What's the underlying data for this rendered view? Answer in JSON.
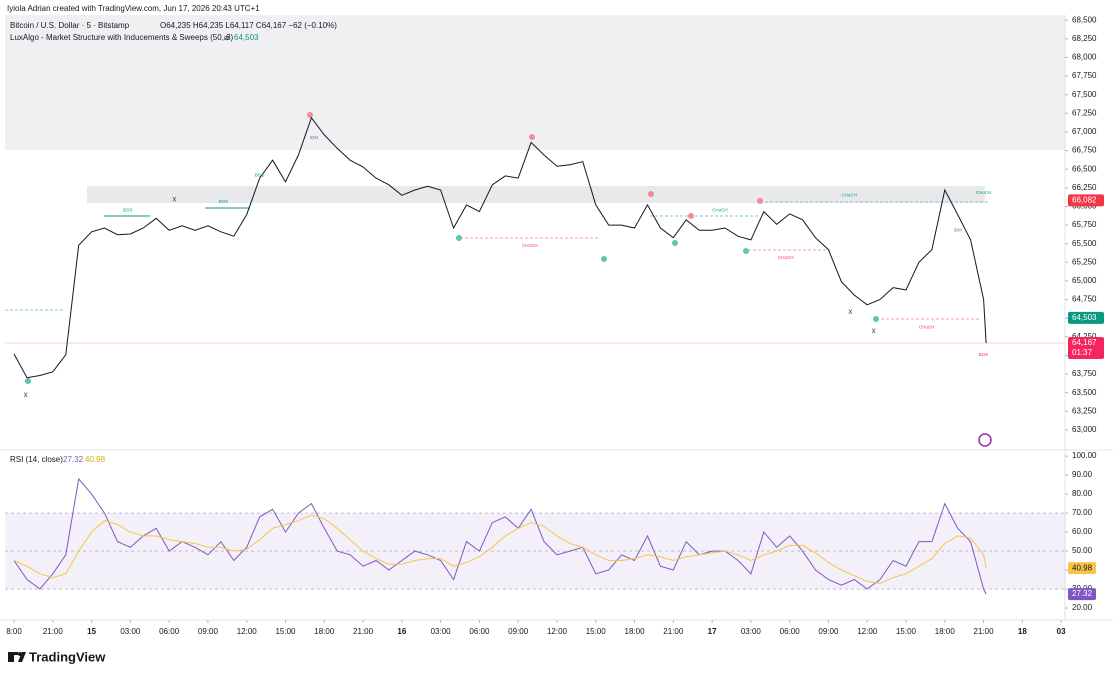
{
  "header": {
    "credit": "Iyiola Adrian created with TradingView.com, Jun 17, 2026 20:43 UTC+1",
    "logo": "TradingView"
  },
  "chart_data": [
    {
      "type": "line",
      "symbol": "Bitcoin / U.S. Dollar · 5 · Bitstamp",
      "ohlc": "O64,235 H64,235 L64,117 C64,167 −62 (−0.10%)",
      "indicator": "LuxAlgo - Market Structure with Inducements & Sweeps (50, 3)",
      "indicator_symbol": "⌀",
      "xlim": [
        -0.7,
        81.3
      ],
      "ylim": [
        62730,
        68570
      ],
      "yticks": [
        {
          "value": 68500,
          "label": "68,500"
        },
        {
          "value": 68250,
          "label": "68,250"
        },
        {
          "value": 68000,
          "label": "68,000"
        },
        {
          "value": 67750,
          "label": "67,750"
        },
        {
          "value": 67500,
          "label": "67,500"
        },
        {
          "value": 67250,
          "label": "67,250"
        },
        {
          "value": 67000,
          "label": "67,000"
        },
        {
          "value": 66750,
          "label": "66,750"
        },
        {
          "value": 66500,
          "label": "66,500"
        },
        {
          "value": 66250,
          "label": "66,250"
        },
        {
          "value": 66000,
          "label": "66,000"
        },
        {
          "value": 65750,
          "label": "65,750"
        },
        {
          "value": 65500,
          "label": "65,500"
        },
        {
          "value": 65250,
          "label": "65,250"
        },
        {
          "value": 65000,
          "label": "65,000"
        },
        {
          "value": 64750,
          "label": "64,750"
        },
        {
          "value": 64500,
          "label": "64,500"
        },
        {
          "value": 64250,
          "label": "64,250"
        },
        {
          "value": 64000,
          "label": "64,000"
        },
        {
          "value": 63750,
          "label": "63,750"
        },
        {
          "value": 63500,
          "label": "63,500"
        },
        {
          "value": 63250,
          "label": "63,250"
        },
        {
          "value": 63000,
          "label": "63,000"
        }
      ],
      "grid": false,
      "x": [
        0,
        1,
        2,
        3,
        4,
        5,
        6,
        7,
        8,
        9,
        10,
        11,
        12,
        13,
        14,
        15,
        16,
        17,
        18,
        19,
        20,
        21,
        22,
        23,
        24,
        25,
        26,
        27,
        28,
        29,
        30,
        31,
        32,
        33,
        34,
        35,
        36,
        37,
        38,
        39,
        40,
        41,
        42,
        43,
        44,
        45,
        46,
        47,
        48,
        49,
        50,
        51,
        52,
        53,
        54,
        55,
        56,
        57,
        58,
        59,
        60,
        61,
        62,
        63,
        64,
        65,
        66,
        67,
        68,
        69,
        70,
        71,
        72,
        73,
        74,
        75,
        75.2
      ],
      "series": [
        {
          "name": "BTCUSD",
          "color": "#131722",
          "values": [
            64020,
            63700,
            63730,
            63780,
            64010,
            65480,
            65660,
            65710,
            65620,
            65630,
            65710,
            65840,
            65680,
            65740,
            65680,
            65740,
            65660,
            65600,
            65890,
            66380,
            66620,
            66330,
            66690,
            67190,
            66960,
            66780,
            66620,
            66530,
            66380,
            66290,
            66150,
            66220,
            66270,
            66220,
            65710,
            66020,
            65930,
            66290,
            66410,
            66380,
            66860,
            66690,
            66540,
            66560,
            66600,
            66020,
            65750,
            65750,
            65710,
            66020,
            65710,
            65580,
            65820,
            65680,
            65680,
            65710,
            65600,
            65550,
            65930,
            65760,
            65900,
            65820,
            65580,
            65420,
            64990,
            64810,
            64680,
            64750,
            64910,
            64880,
            65250,
            65420,
            66220,
            65890,
            65550,
            64750,
            64167
          ]
        }
      ],
      "price_labels": [
        {
          "value": 66082,
          "label": "66,082",
          "color": "#f23645"
        },
        {
          "value": 64503,
          "label": "64,503",
          "color": "#089981"
        },
        {
          "value": 64167,
          "label": "64,167",
          "color": "#f7255f",
          "countdown": "01:37"
        }
      ],
      "annotations": [
        {
          "text": "BOS",
          "x": 8.8,
          "y": 65950,
          "color": "#089981"
        },
        {
          "text": "BOS",
          "x": 16.2,
          "y": 66060,
          "color": "#089981"
        },
        {
          "text": "BOS",
          "x": 19.0,
          "y": 66420,
          "color": "#089981"
        },
        {
          "text": "CHoCH",
          "x": 39.9,
          "y": 65470,
          "color": "#f23645"
        },
        {
          "text": "CHoCH",
          "x": 54.6,
          "y": 65950,
          "color": "#089981"
        },
        {
          "text": "CHoCH",
          "x": 59.7,
          "y": 65310,
          "color": "#f23645"
        },
        {
          "text": "CHoCH",
          "x": 64.6,
          "y": 66150,
          "color": "#089981"
        },
        {
          "text": "CHoCH",
          "x": 75.0,
          "y": 66180,
          "color": "#089981"
        },
        {
          "text": "CHoCH",
          "x": 70.6,
          "y": 64380,
          "color": "#f23645"
        },
        {
          "text": "BOS",
          "x": 75.0,
          "y": 64010,
          "color": "#f23645"
        },
        {
          "text": "X",
          "x": 12.4,
          "y": 66090,
          "color": "#131722"
        },
        {
          "text": "X",
          "x": 0.9,
          "y": 63460,
          "color": "#131722"
        },
        {
          "text": "X",
          "x": 64.7,
          "y": 64580,
          "color": "#131722"
        },
        {
          "text": "X",
          "x": 66.5,
          "y": 64320,
          "color": "#131722"
        },
        {
          "text": "IDM",
          "x": 23.2,
          "y": 66920,
          "color": "#787b86"
        },
        {
          "text": "IDM",
          "x": 73.0,
          "y": 65680,
          "color": "#787b86"
        }
      ]
    },
    {
      "type": "line",
      "title": "RSI (14, close)",
      "xlim": [
        -0.7,
        81.3
      ],
      "ylim": [
        13.7,
        103.2
      ],
      "yticks": [
        {
          "value": 100,
          "label": "100.00"
        },
        {
          "value": 90,
          "label": "90.00"
        },
        {
          "value": 80,
          "label": "80.00"
        },
        {
          "value": 70,
          "label": "70.00"
        },
        {
          "value": 60,
          "label": "60.00"
        },
        {
          "value": 50,
          "label": "50.00"
        },
        {
          "value": 40,
          "label": "40.00"
        },
        {
          "value": 30,
          "label": "30.00"
        },
        {
          "value": 20,
          "label": "20.00"
        }
      ],
      "band": [
        30,
        70
      ],
      "midline": 50,
      "xticks": [
        {
          "value": 0,
          "label": "8:00"
        },
        {
          "value": 3,
          "label": "21:00"
        },
        {
          "value": 6,
          "label": "15"
        },
        {
          "value": 9,
          "label": "03:00"
        },
        {
          "value": 12,
          "label": "06:00"
        },
        {
          "value": 15,
          "label": "09:00"
        },
        {
          "value": 18,
          "label": "12:00"
        },
        {
          "value": 21,
          "label": "15:00"
        },
        {
          "value": 24,
          "label": "18:00"
        },
        {
          "value": 27,
          "label": "21:00"
        },
        {
          "value": 30,
          "label": "16"
        },
        {
          "value": 33,
          "label": "03:00"
        },
        {
          "value": 36,
          "label": "06:00"
        },
        {
          "value": 39,
          "label": "09:00"
        },
        {
          "value": 42,
          "label": "12:00"
        },
        {
          "value": 45,
          "label": "15:00"
        },
        {
          "value": 48,
          "label": "18:00"
        },
        {
          "value": 51,
          "label": "21:00"
        },
        {
          "value": 54,
          "label": "17"
        },
        {
          "value": 57,
          "label": "03:00"
        },
        {
          "value": 60,
          "label": "06:00"
        },
        {
          "value": 63,
          "label": "09:00"
        },
        {
          "value": 66,
          "label": "12:00"
        },
        {
          "value": 69,
          "label": "15:00"
        },
        {
          "value": 72,
          "label": "18:00"
        },
        {
          "value": 75,
          "label": "21:00"
        },
        {
          "value": 78,
          "label": "18"
        },
        {
          "value": 81,
          "label": "03"
        }
      ],
      "x": [
        0,
        1,
        2,
        3,
        4,
        5,
        6,
        7,
        8,
        9,
        10,
        11,
        12,
        13,
        14,
        15,
        16,
        17,
        18,
        19,
        20,
        21,
        22,
        23,
        24,
        25,
        26,
        27,
        28,
        29,
        30,
        31,
        32,
        33,
        34,
        35,
        36,
        37,
        38,
        39,
        40,
        41,
        42,
        43,
        44,
        45,
        46,
        47,
        48,
        49,
        50,
        51,
        52,
        53,
        54,
        55,
        56,
        57,
        58,
        59,
        60,
        61,
        62,
        63,
        64,
        65,
        66,
        67,
        68,
        69,
        70,
        71,
        72,
        73,
        74,
        75,
        75.2
      ],
      "series": [
        {
          "name": "RSI",
          "color": "#7e57c2",
          "values": [
            45,
            35,
            30,
            38,
            48,
            88,
            80,
            70,
            55,
            52,
            58,
            62,
            50,
            55,
            52,
            48,
            55,
            45,
            52,
            68,
            72,
            60,
            70,
            75,
            62,
            50,
            48,
            42,
            45,
            40,
            45,
            50,
            48,
            45,
            35,
            55,
            50,
            65,
            68,
            62,
            72,
            55,
            48,
            50,
            52,
            38,
            40,
            48,
            45,
            58,
            42,
            40,
            55,
            48,
            50,
            50,
            45,
            38,
            60,
            52,
            58,
            50,
            40,
            35,
            32,
            35,
            30,
            35,
            45,
            42,
            55,
            55,
            75,
            62,
            55,
            30,
            27.32
          ]
        },
        {
          "name": "RSI-based MA",
          "color": "#f7c548",
          "values": [
            45,
            42,
            38,
            36,
            38,
            50,
            60,
            66,
            64,
            60,
            58,
            58,
            56,
            55,
            54,
            52,
            52,
            50,
            51,
            56,
            62,
            64,
            66,
            69,
            67,
            62,
            56,
            50,
            46,
            43,
            43,
            45,
            46,
            46,
            42,
            44,
            47,
            52,
            58,
            62,
            65,
            63,
            58,
            54,
            52,
            48,
            45,
            45,
            46,
            48,
            47,
            45,
            47,
            48,
            49,
            50,
            48,
            45,
            48,
            50,
            53,
            53,
            49,
            44,
            40,
            37,
            34,
            33,
            36,
            38,
            42,
            46,
            54,
            58,
            57,
            48,
            40.98
          ]
        }
      ]
    }
  ]
}
